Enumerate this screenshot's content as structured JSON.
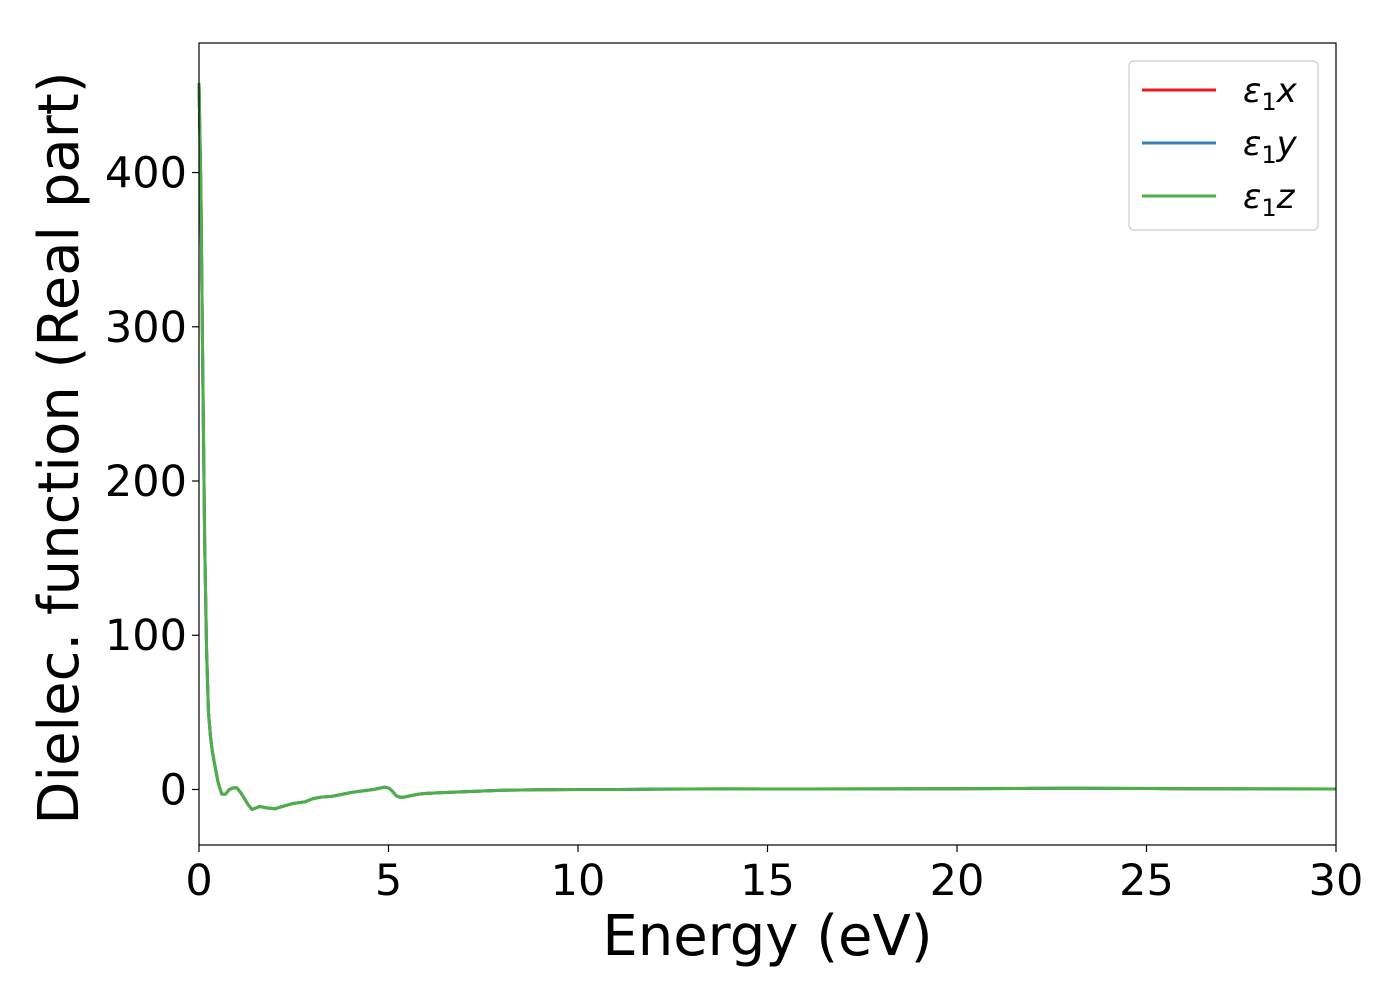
{
  "chart_data": {
    "type": "line",
    "xlabel": "Energy (eV)",
    "ylabel": "Dielec. function (Real part)",
    "xlim": [
      0,
      30
    ],
    "ylim": [
      -36,
      484
    ],
    "xticks": [
      0,
      5,
      10,
      15,
      20,
      25,
      30
    ],
    "yticks": [
      0,
      100,
      200,
      300,
      400
    ],
    "grid": false,
    "legend_position": "top-right",
    "x": [
      0.0,
      0.05,
      0.1,
      0.15,
      0.2,
      0.25,
      0.3,
      0.35,
      0.4,
      0.5,
      0.6,
      0.7,
      0.8,
      0.9,
      1.0,
      1.1,
      1.2,
      1.3,
      1.4,
      1.5,
      1.6,
      1.8,
      2.0,
      2.2,
      2.5,
      2.8,
      3.0,
      3.2,
      3.5,
      3.8,
      4.0,
      4.3,
      4.6,
      4.8,
      4.9,
      5.0,
      5.1,
      5.2,
      5.3,
      5.4,
      5.6,
      5.8,
      6.0,
      6.5,
      7.0,
      7.5,
      8.0,
      8.5,
      9.0,
      10.0,
      11.0,
      12.0,
      13.0,
      14.0,
      15.0,
      16.0,
      18.0,
      20.0,
      22.0,
      23.0,
      24.0,
      25.0,
      26.0,
      28.0,
      30.0
    ],
    "series": [
      {
        "name": "ε1x",
        "color": "#e41a1c",
        "values": [
          458,
          390,
          270,
          160,
          90,
          50,
          35,
          25,
          18,
          5,
          -3,
          -3,
          0,
          1,
          1,
          -2,
          -6,
          -10,
          -13,
          -12,
          -11,
          -12,
          -12.5,
          -11,
          -9,
          -8,
          -6,
          -5,
          -4.5,
          -3,
          -2,
          -1,
          0,
          1,
          1.5,
          1,
          -1,
          -4,
          -5,
          -5,
          -4,
          -3,
          -2.5,
          -2,
          -1.5,
          -1,
          -0.5,
          -0.3,
          -0.2,
          0,
          0,
          0.2,
          0.3,
          0.4,
          0.3,
          0.3,
          0.4,
          0.5,
          0.7,
          0.8,
          0.7,
          0.6,
          0.5,
          0.4,
          0.3
        ]
      },
      {
        "name": "ε1y",
        "color": "#377eb8",
        "values": [
          458,
          390,
          270,
          160,
          90,
          50,
          35,
          25,
          18,
          5,
          -3,
          -3,
          0,
          1,
          1,
          -2,
          -6,
          -10,
          -13,
          -12,
          -11,
          -12,
          -12.5,
          -11,
          -9,
          -8,
          -6,
          -5,
          -4.5,
          -3,
          -2,
          -1,
          0,
          1,
          1.5,
          1,
          -1,
          -4,
          -5,
          -5,
          -4,
          -3,
          -2.5,
          -2,
          -1.5,
          -1,
          -0.5,
          -0.3,
          -0.2,
          0,
          0,
          0.2,
          0.3,
          0.4,
          0.3,
          0.3,
          0.4,
          0.5,
          0.7,
          0.8,
          0.7,
          0.6,
          0.5,
          0.4,
          0.3
        ]
      },
      {
        "name": "ε1z",
        "color": "#4daf4a",
        "values": [
          458,
          390,
          270,
          160,
          90,
          50,
          35,
          25,
          18,
          5,
          -3,
          -3,
          0,
          1,
          1,
          -2,
          -6,
          -10,
          -13,
          -12,
          -11,
          -12,
          -12.5,
          -11,
          -9,
          -8,
          -6,
          -5,
          -4.5,
          -3,
          -2,
          -1,
          0,
          1,
          1.5,
          1,
          -1,
          -4,
          -5,
          -5,
          -4,
          -3,
          -2.5,
          -2,
          -1.5,
          -1,
          -0.5,
          -0.3,
          -0.2,
          0,
          0,
          0.2,
          0.3,
          0.4,
          0.3,
          0.3,
          0.4,
          0.5,
          0.7,
          0.8,
          0.7,
          0.6,
          0.5,
          0.4,
          0.3
        ]
      }
    ]
  }
}
